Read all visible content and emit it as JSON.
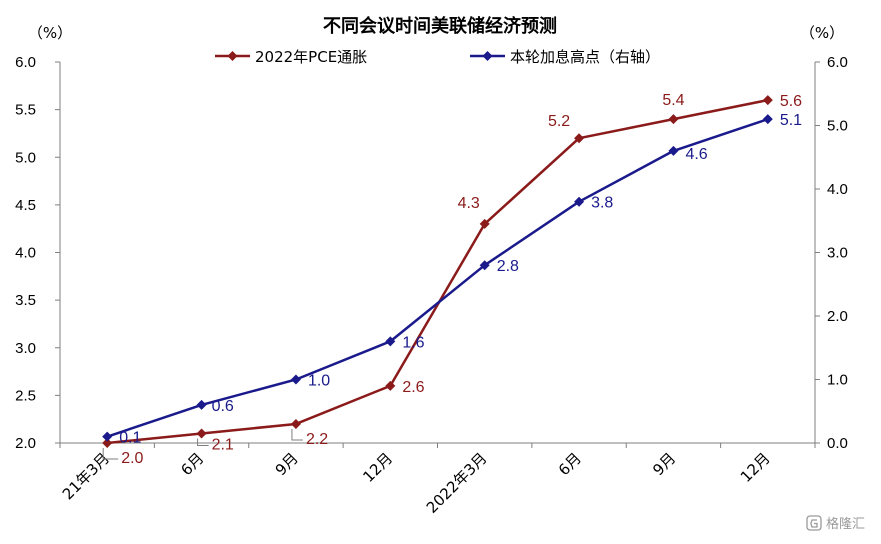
{
  "chart_data": {
    "type": "line",
    "title": "不同会议时间美联储经济预测",
    "left_unit": "（%）",
    "right_unit": "（%）",
    "categories": [
      "21年3月",
      "6月",
      "9月",
      "12月",
      "2022年3月",
      "6月",
      "9月",
      "12月"
    ],
    "left_axis": {
      "min": 2.0,
      "max": 6.0,
      "ticks": [
        "2.0",
        "2.5",
        "3.0",
        "3.5",
        "4.0",
        "4.5",
        "5.0",
        "5.5",
        "6.0"
      ]
    },
    "right_axis": {
      "min": 0.0,
      "max": 6.0,
      "ticks": [
        "0.0",
        "1.0",
        "2.0",
        "3.0",
        "4.0",
        "5.0",
        "6.0"
      ]
    },
    "series": [
      {
        "name": "2022年PCE通胀",
        "axis": "left",
        "color": "#8B1A1A",
        "values": [
          2.0,
          2.1,
          2.2,
          2.6,
          4.3,
          5.2,
          5.4,
          5.6
        ],
        "labels": [
          "2.0",
          "2.1",
          "2.2",
          "2.6",
          "4.3",
          "5.2",
          "5.4",
          "5.6"
        ]
      },
      {
        "name": "本轮加息高点（右轴）",
        "axis": "right",
        "color": "#1A1A8C",
        "values": [
          0.1,
          0.6,
          1.0,
          1.6,
          2.8,
          3.8,
          4.6,
          5.1
        ],
        "labels": [
          "0.1",
          "0.6",
          "1.0",
          "1.6",
          "2.8",
          "3.8",
          "4.6",
          "5.1"
        ]
      }
    ],
    "grid": false,
    "legend_position": "top"
  },
  "watermark": {
    "text": "格隆汇",
    "icon": "g-logo-icon"
  }
}
